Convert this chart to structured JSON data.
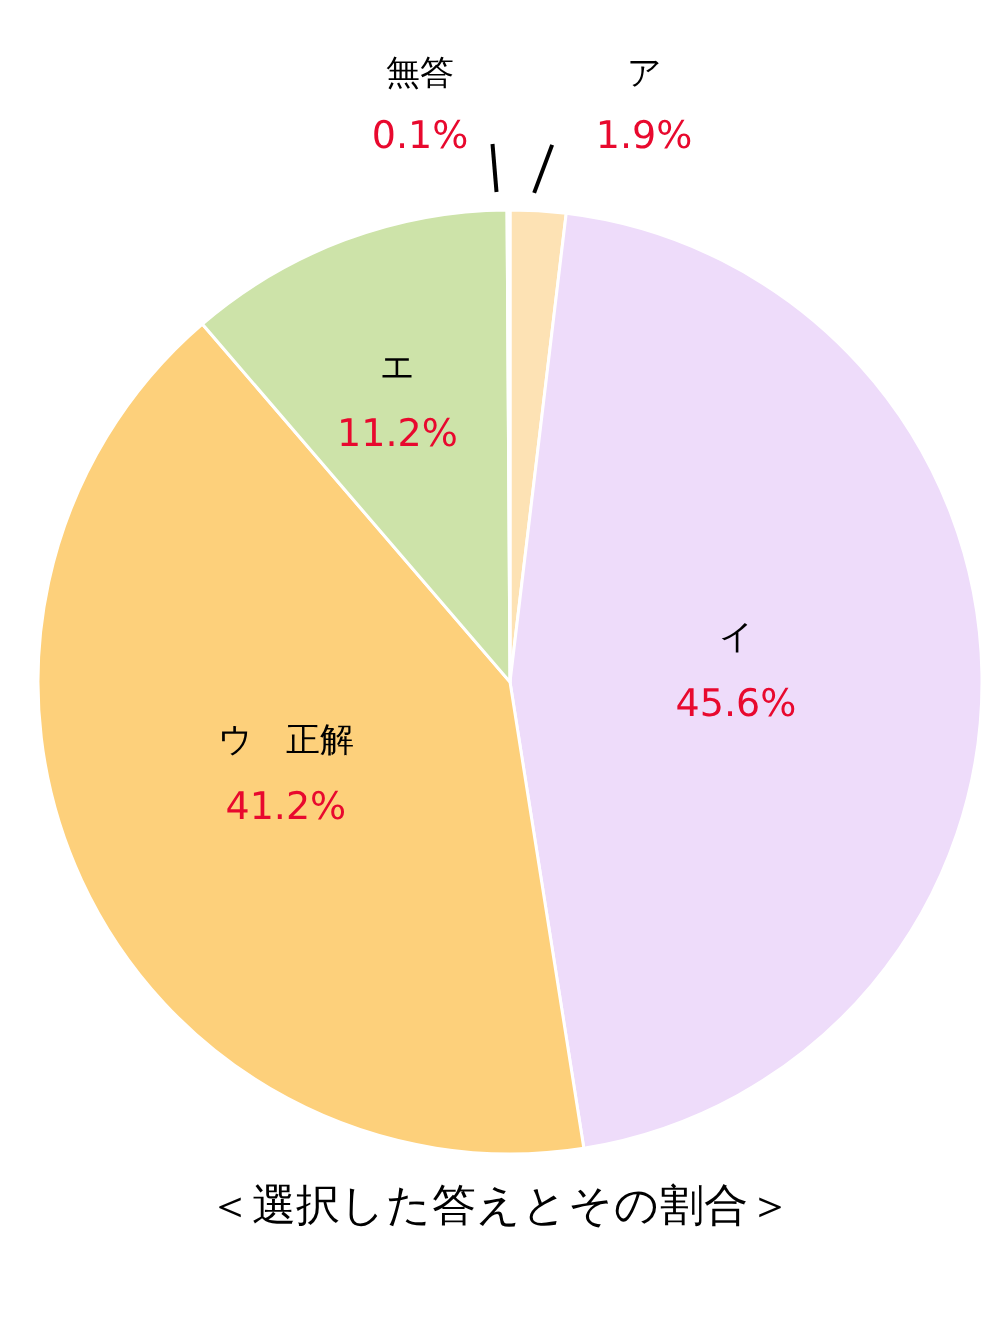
{
  "chart_data": {
    "type": "pie",
    "title": "＜選択した答えとその割合＞",
    "categories": [
      "ア",
      "イ",
      "ウ　正解",
      "エ",
      "無答"
    ],
    "values": [
      1.9,
      45.6,
      41.2,
      11.2,
      0.1
    ],
    "value_labels": [
      "1.9%",
      "45.6%",
      "41.2%",
      "11.2%",
      "0.1%"
    ],
    "colors": [
      "#fde2b4",
      "#eedcfa",
      "#fdd07b",
      "#cde3a9",
      "#8a8a8a"
    ],
    "legend": false
  }
}
